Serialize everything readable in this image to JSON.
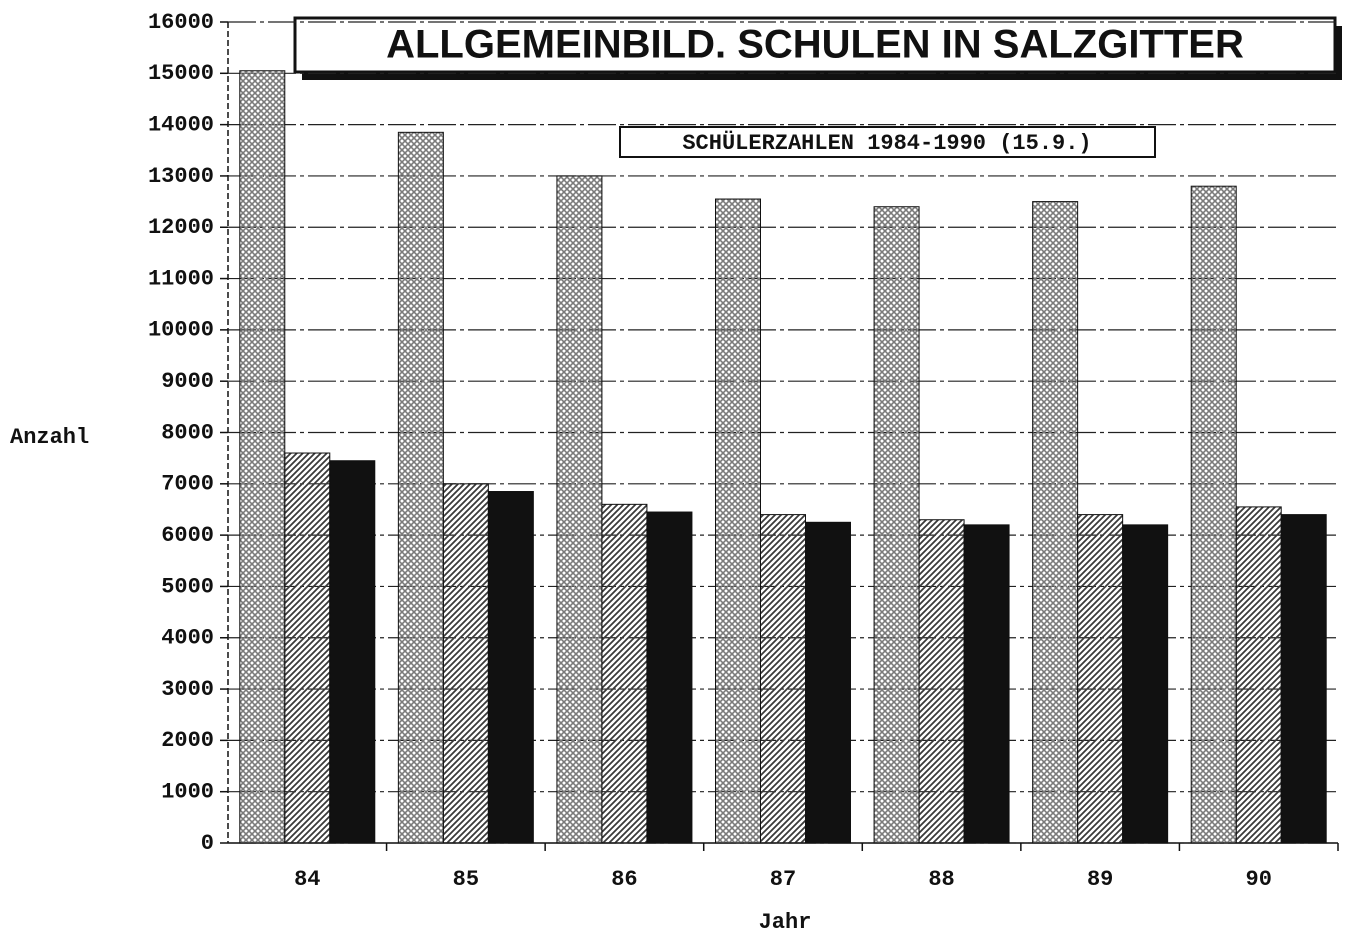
{
  "chart_data": {
    "type": "bar",
    "title": "ALLGEMEINBILD. SCHULEN IN SALZGITTER",
    "subtitle": "SCHÜLERZAHLEN 1984-1990 (15.9.)",
    "y_label": "Anzahl",
    "x_label": "Jahr",
    "categories": [
      "84",
      "85",
      "86",
      "87",
      "88",
      "89",
      "90"
    ],
    "series": [
      {
        "color": "#7a7a7a",
        "values": [
          15050,
          13850,
          13000,
          12550,
          12400,
          12500,
          12800
        ]
      },
      {
        "color": "#3a3a3a",
        "values": [
          7600,
          7000,
          6600,
          6400,
          6300,
          6400,
          6550
        ]
      },
      {
        "color": "#111111",
        "values": [
          7450,
          6850,
          6450,
          6250,
          6200,
          6200,
          6400
        ]
      }
    ],
    "ylim": [
      0,
      16000
    ],
    "yticks": [
      0,
      1000,
      2000,
      3000,
      4000,
      5000,
      6000,
      7000,
      8000,
      9000,
      10000,
      11000,
      12000,
      13000,
      14000,
      15000,
      16000
    ],
    "grid": true
  }
}
